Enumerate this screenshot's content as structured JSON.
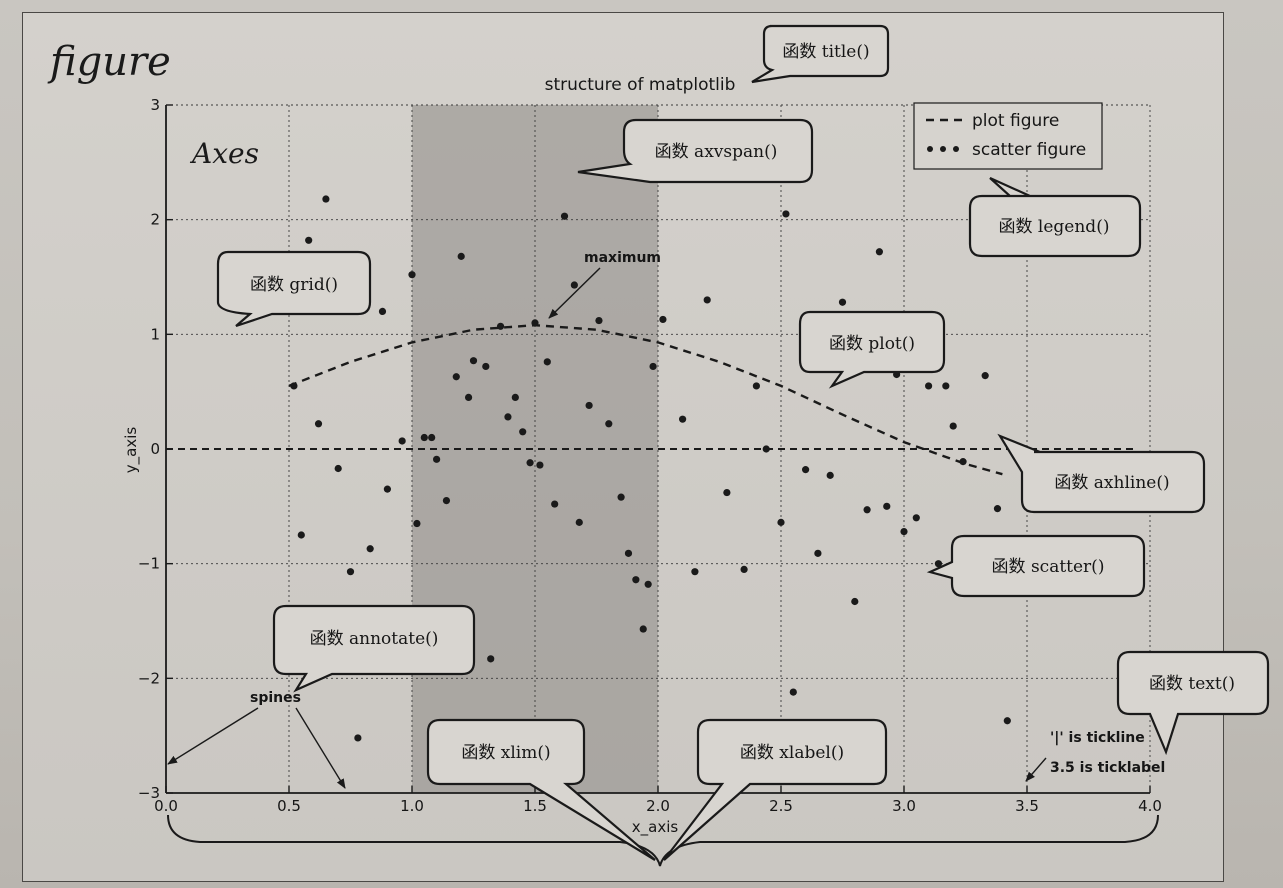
{
  "figure": {
    "label": "figure",
    "axes_label": "Axes"
  },
  "chart_data": {
    "type": "scatter",
    "title": "structure of matplotlib",
    "xlabel": "x_axis",
    "ylabel": "y_axis",
    "xlim": [
      0.0,
      4.0
    ],
    "ylim": [
      -3,
      3
    ],
    "grid": true,
    "legend_position": "top-right",
    "xticks": [
      "0.0",
      "0.5",
      "1.0",
      "1.5",
      "2.0",
      "2.5",
      "3.0",
      "3.5",
      "4.0"
    ],
    "yticks": [
      "3",
      "2",
      "1",
      "0",
      "−1",
      "−2",
      "−3"
    ],
    "axvspan": [
      1.0,
      2.0
    ],
    "axhline": 0,
    "series": [
      {
        "name": "plot figure",
        "style": "dashed line",
        "x": [
          0.5,
          0.75,
          1.0,
          1.25,
          1.5,
          1.75,
          2.0,
          2.25,
          2.5,
          2.75,
          3.0,
          3.25,
          3.4
        ],
        "y": [
          0.55,
          0.76,
          0.93,
          1.04,
          1.08,
          1.04,
          0.93,
          0.76,
          0.55,
          0.3,
          0.06,
          -0.13,
          -0.22
        ]
      },
      {
        "name": "scatter figure",
        "style": "dots",
        "x": [
          0.52,
          0.55,
          0.58,
          0.62,
          0.65,
          0.7,
          0.75,
          0.78,
          0.83,
          0.88,
          0.9,
          0.96,
          1.0,
          1.02,
          1.05,
          1.08,
          1.1,
          1.14,
          1.18,
          1.2,
          1.23,
          1.25,
          1.3,
          1.32,
          1.36,
          1.39,
          1.42,
          1.45,
          1.48,
          1.5,
          1.52,
          1.55,
          1.58,
          1.62,
          1.66,
          1.68,
          1.72,
          1.76,
          1.8,
          1.85,
          1.88,
          1.91,
          1.94,
          1.96,
          1.98,
          2.02,
          2.1,
          2.15,
          2.2,
          2.28,
          2.35,
          2.4,
          2.44,
          2.5,
          2.52,
          2.55,
          2.6,
          2.65,
          2.7,
          2.72,
          2.75,
          2.8,
          2.85,
          2.9,
          2.93,
          2.97,
          3.0,
          3.05,
          3.08,
          3.1,
          3.14,
          3.17,
          3.2,
          3.24,
          3.3,
          3.33,
          3.38,
          3.42
        ],
        "y": [
          0.55,
          -0.75,
          1.82,
          0.22,
          2.18,
          -0.17,
          -1.07,
          -2.52,
          -0.87,
          1.2,
          -0.35,
          0.07,
          1.52,
          -0.65,
          0.1,
          0.1,
          -0.09,
          -0.45,
          0.63,
          1.68,
          0.45,
          0.77,
          0.72,
          -1.83,
          1.07,
          0.28,
          0.45,
          0.15,
          -0.12,
          1.1,
          -0.14,
          0.76,
          -0.48,
          2.03,
          1.43,
          -0.64,
          0.38,
          1.12,
          0.22,
          -0.42,
          -0.91,
          -1.14,
          -1.57,
          -1.18,
          0.72,
          1.13,
          0.26,
          -1.07,
          1.3,
          -0.38,
          -1.05,
          0.55,
          0.0,
          -0.64,
          2.05,
          -2.12,
          -0.18,
          -0.91,
          -0.23,
          0.82,
          1.28,
          -1.33,
          -0.53,
          1.72,
          -0.5,
          0.65,
          -0.72,
          -0.6,
          0.9,
          0.55,
          -1.0,
          0.55,
          0.2,
          -0.11,
          -1.14,
          0.64,
          -0.52,
          -2.37
        ]
      }
    ],
    "annotations": [
      {
        "text": "maximum",
        "x": 1.5,
        "y": 1.08
      }
    ],
    "callouts": [
      "函数 title()",
      "函数 axvspan()",
      "函数 legend()",
      "函数 grid()",
      "函数 plot()",
      "函数 axhline()",
      "函数 scatter()",
      "函数 annotate()",
      "函数 text()",
      "函数 xlim()",
      "函数 xlabel()"
    ],
    "text_labels": {
      "spines": "spines",
      "tickline": "'|' is tickline",
      "ticklabel": "3.5 is ticklabel"
    }
  },
  "colors": {
    "background": "#c8c5c0",
    "axvspan": "#8e8b87",
    "ink": "#1a1a1a",
    "callout_fill": "#d8d5d0"
  }
}
